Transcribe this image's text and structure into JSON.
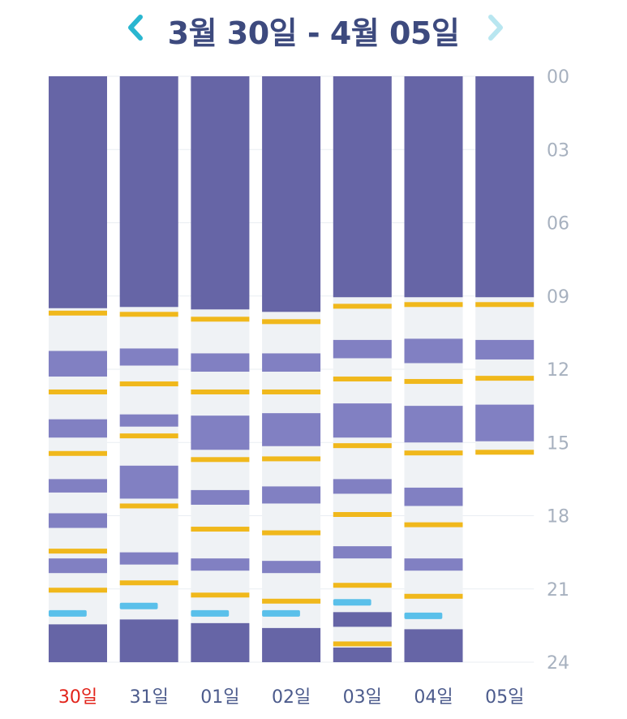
{
  "header": {
    "title": "3월 30일 - 4월 05일",
    "prev_icon": "chevron-left-icon",
    "next_icon": "chevron-right-icon",
    "prev_color": "#29b6d0",
    "next_color": "#b8e6f0"
  },
  "colors": {
    "sleep": "#6665a6",
    "nap": "#8180c2",
    "awake": "#eff2f5",
    "feed": "#f0b81c",
    "event": "#5ac0ea",
    "title": "#3d4a7e",
    "hour_label": "#a7b1bf",
    "day_label": "#4c5b8c",
    "today_label": "#e2231a"
  },
  "chart_data": {
    "type": "timeline",
    "y_unit": "hour",
    "ylim": [
      0,
      24
    ],
    "hour_ticks": [
      "00",
      "03",
      "06",
      "09",
      "12",
      "15",
      "18",
      "21",
      "24"
    ],
    "days": [
      {
        "label": "30일",
        "highlight": true,
        "data_end": 24,
        "blocks": [
          {
            "type": "sleep",
            "start": 0.0,
            "end": 9.5
          },
          {
            "type": "nap",
            "start": 11.25,
            "end": 12.3
          },
          {
            "type": "nap",
            "start": 14.05,
            "end": 14.8
          },
          {
            "type": "nap",
            "start": 16.5,
            "end": 17.05
          },
          {
            "type": "nap",
            "start": 17.9,
            "end": 18.5
          },
          {
            "type": "nap",
            "start": 19.75,
            "end": 20.35
          },
          {
            "type": "sleep",
            "start": 22.45,
            "end": 24.0
          }
        ],
        "feeds": [
          9.7,
          12.93,
          15.45,
          19.45,
          21.05
        ],
        "events": [
          22.0
        ]
      },
      {
        "label": "31일",
        "highlight": false,
        "data_end": 24,
        "blocks": [
          {
            "type": "sleep",
            "start": 0.0,
            "end": 9.45
          },
          {
            "type": "nap",
            "start": 11.15,
            "end": 11.85
          },
          {
            "type": "nap",
            "start": 13.85,
            "end": 14.35
          },
          {
            "type": "nap",
            "start": 15.95,
            "end": 17.3
          },
          {
            "type": "nap",
            "start": 19.5,
            "end": 20.0
          },
          {
            "type": "sleep",
            "start": 22.25,
            "end": 24.0
          }
        ],
        "feeds": [
          9.75,
          12.6,
          14.73,
          17.6,
          20.75
        ],
        "events": [
          21.7
        ]
      },
      {
        "label": "01일",
        "highlight": false,
        "data_end": 24,
        "blocks": [
          {
            "type": "sleep",
            "start": 0.0,
            "end": 9.55
          },
          {
            "type": "nap",
            "start": 11.35,
            "end": 12.1
          },
          {
            "type": "nap",
            "start": 13.9,
            "end": 15.3
          },
          {
            "type": "nap",
            "start": 16.95,
            "end": 17.55
          },
          {
            "type": "nap",
            "start": 19.75,
            "end": 20.25
          },
          {
            "type": "sleep",
            "start": 22.4,
            "end": 24.0
          }
        ],
        "feeds": [
          9.95,
          12.93,
          15.7,
          18.55,
          21.25
        ],
        "events": [
          22.0
        ]
      },
      {
        "label": "02일",
        "highlight": false,
        "data_end": 24,
        "blocks": [
          {
            "type": "sleep",
            "start": 0.0,
            "end": 9.65
          },
          {
            "type": "nap",
            "start": 11.35,
            "end": 12.1
          },
          {
            "type": "nap",
            "start": 13.8,
            "end": 15.15
          },
          {
            "type": "nap",
            "start": 16.8,
            "end": 17.5
          },
          {
            "type": "nap",
            "start": 19.85,
            "end": 20.35
          },
          {
            "type": "sleep",
            "start": 22.6,
            "end": 24.0
          }
        ],
        "feeds": [
          10.05,
          12.93,
          15.67,
          18.7,
          21.5
        ],
        "events": [
          22.0
        ]
      },
      {
        "label": "03일",
        "highlight": false,
        "data_end": 24,
        "blocks": [
          {
            "type": "sleep",
            "start": 0.0,
            "end": 9.05
          },
          {
            "type": "nap",
            "start": 10.8,
            "end": 11.55
          },
          {
            "type": "nap",
            "start": 13.4,
            "end": 14.8
          },
          {
            "type": "nap",
            "start": 16.5,
            "end": 17.1
          },
          {
            "type": "nap",
            "start": 19.25,
            "end": 19.75
          },
          {
            "type": "sleep",
            "start": 21.95,
            "end": 22.55
          },
          {
            "type": "sleep",
            "start": 23.4,
            "end": 24.0
          }
        ],
        "feeds": [
          9.42,
          12.4,
          15.13,
          17.95,
          20.85,
          23.25
        ],
        "events": [
          21.55
        ]
      },
      {
        "label": "04일",
        "highlight": false,
        "data_end": 24,
        "blocks": [
          {
            "type": "sleep",
            "start": 0.0,
            "end": 9.05
          },
          {
            "type": "nap",
            "start": 10.75,
            "end": 11.75
          },
          {
            "type": "nap",
            "start": 13.5,
            "end": 15.0
          },
          {
            "type": "nap",
            "start": 16.85,
            "end": 17.6
          },
          {
            "type": "nap",
            "start": 19.75,
            "end": 20.25
          },
          {
            "type": "sleep",
            "start": 22.65,
            "end": 24.0
          }
        ],
        "feeds": [
          9.35,
          12.5,
          15.43,
          18.37,
          21.3
        ],
        "events": [
          22.1
        ]
      },
      {
        "label": "05일",
        "highlight": false,
        "data_end": 15.45,
        "blocks": [
          {
            "type": "sleep",
            "start": 0.0,
            "end": 9.05
          },
          {
            "type": "nap",
            "start": 10.8,
            "end": 11.6
          },
          {
            "type": "nap",
            "start": 13.45,
            "end": 14.95
          }
        ],
        "feeds": [
          9.35,
          12.37,
          15.4
        ],
        "events": []
      }
    ]
  }
}
